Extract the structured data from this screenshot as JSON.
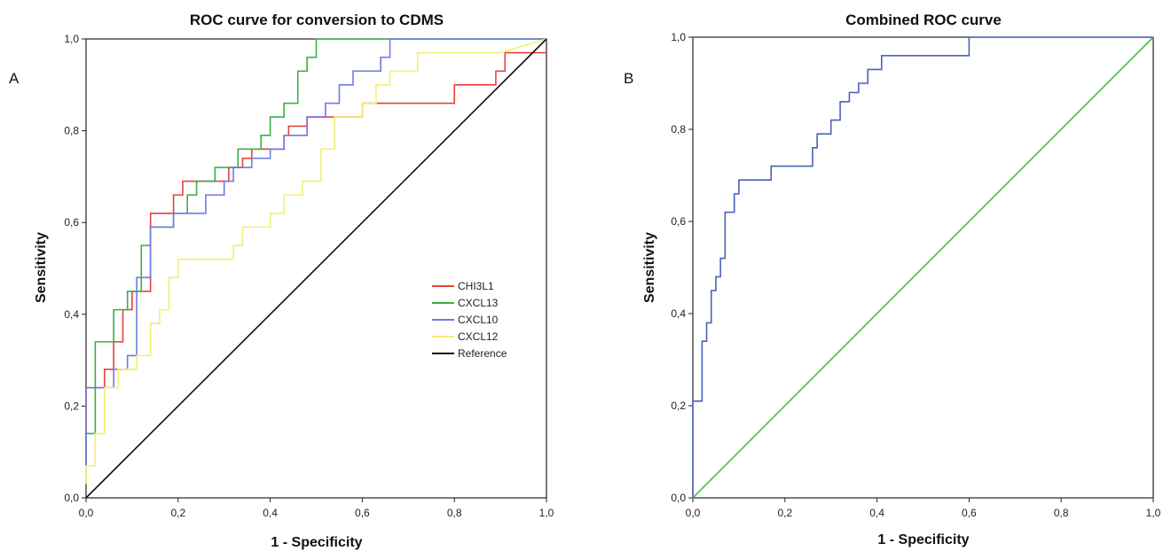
{
  "chart_data": [
    {
      "type": "line",
      "panel_label": "A",
      "title": "ROC curve for conversion to CDMS",
      "xlabel": "1 - Specificity",
      "ylabel": "Sensitivity",
      "xlim": [
        0,
        1
      ],
      "ylim": [
        0,
        1
      ],
      "xticks": [
        "0,0",
        "0,2",
        "0,4",
        "0,6",
        "0,8",
        "1,0"
      ],
      "yticks": [
        "0,0",
        "0,2",
        "0,4",
        "0,6",
        "0,8",
        "1,0"
      ],
      "grid": false,
      "legend_position": "center-right",
      "series": [
        {
          "name": "CHI3L1",
          "color": "#e8403a",
          "x": [
            0,
            0,
            0.04,
            0.04,
            0.06,
            0.06,
            0.08,
            0.08,
            0.1,
            0.1,
            0.14,
            0.14,
            0.19,
            0.19,
            0.21,
            0.21,
            0.31,
            0.31,
            0.34,
            0.34,
            0.36,
            0.36,
            0.43,
            0.43,
            0.44,
            0.44,
            0.48,
            0.48,
            0.6,
            0.6,
            0.8,
            0.8,
            0.89,
            0.89,
            0.91,
            0.91,
            1
          ],
          "y": [
            0.07,
            0.24,
            0.24,
            0.28,
            0.28,
            0.34,
            0.34,
            0.41,
            0.41,
            0.45,
            0.45,
            0.62,
            0.62,
            0.66,
            0.66,
            0.69,
            0.69,
            0.72,
            0.72,
            0.74,
            0.74,
            0.76,
            0.76,
            0.79,
            0.79,
            0.81,
            0.81,
            0.83,
            0.83,
            0.86,
            0.86,
            0.9,
            0.9,
            0.93,
            0.93,
            0.97,
            0.97
          ]
        },
        {
          "name": "CXCL13",
          "color": "#3bb043",
          "x": [
            0,
            0,
            0.02,
            0.02,
            0.06,
            0.06,
            0.09,
            0.09,
            0.12,
            0.12,
            0.14,
            0.14,
            0.19,
            0.19,
            0.22,
            0.22,
            0.24,
            0.24,
            0.28,
            0.28,
            0.33,
            0.33,
            0.38,
            0.38,
            0.4,
            0.4,
            0.43,
            0.43,
            0.46,
            0.46,
            0.48,
            0.48,
            0.5,
            0.5,
            1
          ],
          "y": [
            0.07,
            0.14,
            0.14,
            0.34,
            0.34,
            0.41,
            0.41,
            0.45,
            0.45,
            0.55,
            0.55,
            0.59,
            0.59,
            0.62,
            0.62,
            0.66,
            0.66,
            0.69,
            0.69,
            0.72,
            0.72,
            0.76,
            0.76,
            0.79,
            0.79,
            0.83,
            0.83,
            0.86,
            0.86,
            0.93,
            0.93,
            0.96,
            0.96,
            1,
            1
          ]
        },
        {
          "name": "CXCL10",
          "color": "#6f79e6",
          "x": [
            0,
            0,
            0.06,
            0.06,
            0.09,
            0.09,
            0.11,
            0.11,
            0.14,
            0.14,
            0.19,
            0.19,
            0.26,
            0.26,
            0.3,
            0.3,
            0.32,
            0.32,
            0.36,
            0.36,
            0.4,
            0.4,
            0.43,
            0.43,
            0.48,
            0.48,
            0.52,
            0.52,
            0.55,
            0.55,
            0.58,
            0.58,
            0.64,
            0.64,
            0.66,
            0.66,
            0.68,
            0.68,
            1
          ],
          "y": [
            0.07,
            0.24,
            0.24,
            0.28,
            0.28,
            0.31,
            0.31,
            0.48,
            0.48,
            0.59,
            0.59,
            0.62,
            0.62,
            0.66,
            0.66,
            0.69,
            0.69,
            0.72,
            0.72,
            0.74,
            0.74,
            0.76,
            0.76,
            0.79,
            0.79,
            0.83,
            0.83,
            0.86,
            0.86,
            0.9,
            0.9,
            0.93,
            0.93,
            0.96,
            0.96,
            1,
            1,
            1,
            1
          ]
        },
        {
          "name": "CXCL12",
          "color": "#f2ef73",
          "x": [
            0,
            0,
            0.02,
            0.02,
            0.04,
            0.04,
            0.07,
            0.07,
            0.11,
            0.11,
            0.14,
            0.14,
            0.16,
            0.16,
            0.18,
            0.18,
            0.2,
            0.2,
            0.32,
            0.32,
            0.34,
            0.34,
            0.4,
            0.4,
            0.43,
            0.43,
            0.47,
            0.47,
            0.51,
            0.51,
            0.54,
            0.54,
            0.6,
            0.6,
            0.63,
            0.63,
            0.66,
            0.66,
            0.72,
            0.72,
            0.9,
            1
          ],
          "y": [
            0.03,
            0.07,
            0.07,
            0.14,
            0.14,
            0.24,
            0.24,
            0.28,
            0.28,
            0.31,
            0.31,
            0.38,
            0.38,
            0.41,
            0.41,
            0.48,
            0.48,
            0.52,
            0.52,
            0.55,
            0.55,
            0.59,
            0.59,
            0.62,
            0.62,
            0.66,
            0.66,
            0.69,
            0.69,
            0.76,
            0.76,
            0.83,
            0.83,
            0.86,
            0.86,
            0.9,
            0.9,
            0.93,
            0.93,
            0.97,
            0.97,
            1
          ]
        },
        {
          "name": "Reference",
          "color": "#111111",
          "x": [
            0,
            1
          ],
          "y": [
            0,
            1
          ]
        }
      ]
    },
    {
      "type": "line",
      "panel_label": "B",
      "title": "Combined ROC curve",
      "xlabel": "1 - Specificity",
      "ylabel": "Sensitivity",
      "xlim": [
        0,
        1
      ],
      "ylim": [
        0,
        1
      ],
      "xticks": [
        "0,0",
        "0,2",
        "0,4",
        "0,6",
        "0,8",
        "1,0"
      ],
      "yticks": [
        "0,0",
        "0,2",
        "0,4",
        "0,6",
        "0,8",
        "1,0"
      ],
      "grid": false,
      "series": [
        {
          "color": "#4a62ba",
          "x": [
            0,
            0,
            0.02,
            0.02,
            0.03,
            0.03,
            0.04,
            0.04,
            0.05,
            0.05,
            0.06,
            0.06,
            0.07,
            0.07,
            0.09,
            0.09,
            0.1,
            0.1,
            0.17,
            0.17,
            0.26,
            0.26,
            0.27,
            0.27,
            0.3,
            0.3,
            0.32,
            0.32,
            0.34,
            0.34,
            0.36,
            0.36,
            0.38,
            0.38,
            0.41,
            0.41,
            0.44,
            0.44,
            0.6,
            0.6,
            0.65,
            0.65,
            1
          ],
          "y": [
            0,
            0.21,
            0.21,
            0.34,
            0.34,
            0.38,
            0.38,
            0.45,
            0.45,
            0.48,
            0.48,
            0.52,
            0.52,
            0.62,
            0.62,
            0.66,
            0.66,
            0.69,
            0.69,
            0.72,
            0.72,
            0.76,
            0.76,
            0.79,
            0.79,
            0.82,
            0.82,
            0.86,
            0.86,
            0.88,
            0.88,
            0.9,
            0.9,
            0.93,
            0.93,
            0.96,
            0.96,
            0.96,
            0.96,
            1,
            1,
            1,
            1
          ]
        },
        {
          "color": "#3ec43e",
          "x": [
            0,
            1
          ],
          "y": [
            0,
            1
          ]
        }
      ]
    }
  ]
}
